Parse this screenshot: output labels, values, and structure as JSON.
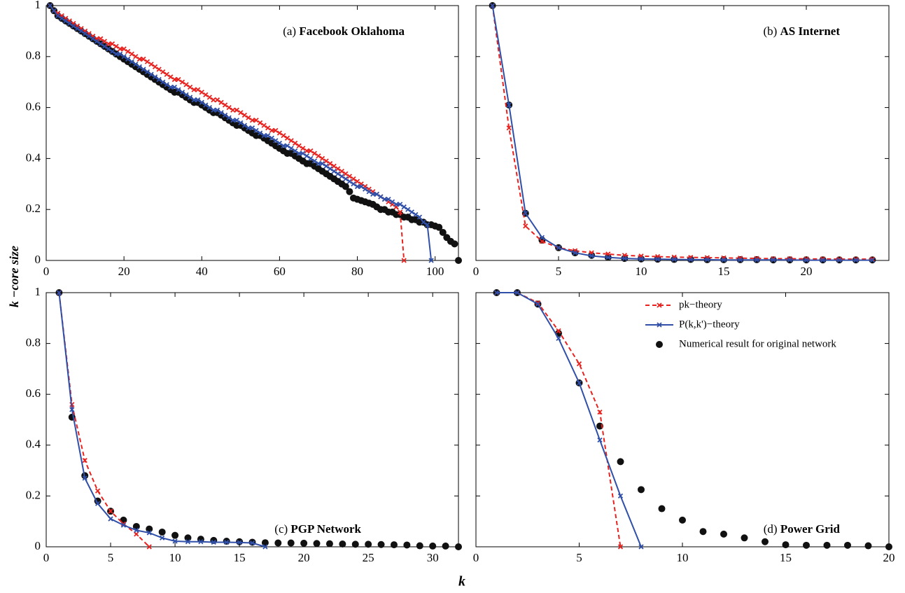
{
  "ylabel": "k −core size",
  "xlabel": "k",
  "chart_data": [
    {
      "type": "line",
      "label": "(a)",
      "title": "Facebook Oklahoma",
      "xlim": [
        0,
        106
      ],
      "xticks": [
        0,
        20,
        40,
        60,
        80,
        100
      ],
      "ylim": [
        0,
        1
      ],
      "yticks": [
        0,
        0.2,
        0.4,
        0.6,
        0.8,
        1
      ],
      "ytick_labels": true,
      "series": [
        {
          "color": "#e8221e",
          "style": "dashed",
          "marker": "x",
          "x": [
            1,
            2,
            3,
            4,
            5,
            6,
            7,
            8,
            9,
            10,
            11,
            12,
            13,
            14,
            15,
            16,
            17,
            18,
            19,
            20,
            21,
            22,
            23,
            24,
            25,
            26,
            27,
            28,
            29,
            30,
            31,
            32,
            33,
            34,
            35,
            36,
            37,
            38,
            39,
            40,
            41,
            42,
            43,
            44,
            45,
            46,
            47,
            48,
            49,
            50,
            51,
            52,
            53,
            54,
            55,
            56,
            57,
            58,
            59,
            60,
            61,
            62,
            63,
            64,
            65,
            66,
            67,
            68,
            69,
            70,
            71,
            72,
            73,
            74,
            75,
            76,
            77,
            78,
            79,
            80,
            81,
            82,
            83,
            84,
            85,
            86,
            87,
            88,
            89,
            90,
            91,
            92
          ],
          "values": [
            1.0,
            0.98,
            0.97,
            0.96,
            0.95,
            0.94,
            0.93,
            0.92,
            0.91,
            0.9,
            0.89,
            0.88,
            0.87,
            0.87,
            0.86,
            0.85,
            0.85,
            0.84,
            0.83,
            0.83,
            0.82,
            0.81,
            0.8,
            0.79,
            0.79,
            0.78,
            0.77,
            0.76,
            0.75,
            0.74,
            0.73,
            0.72,
            0.71,
            0.71,
            0.7,
            0.69,
            0.68,
            0.67,
            0.67,
            0.66,
            0.65,
            0.64,
            0.63,
            0.63,
            0.62,
            0.61,
            0.6,
            0.59,
            0.59,
            0.58,
            0.57,
            0.56,
            0.55,
            0.55,
            0.54,
            0.53,
            0.52,
            0.51,
            0.51,
            0.5,
            0.49,
            0.48,
            0.47,
            0.46,
            0.45,
            0.44,
            0.43,
            0.43,
            0.42,
            0.41,
            0.4,
            0.39,
            0.38,
            0.37,
            0.36,
            0.35,
            0.34,
            0.33,
            0.32,
            0.31,
            0.3,
            0.29,
            0.28,
            0.27,
            0.26,
            0.25,
            0.24,
            0.23,
            0.22,
            0.21,
            0.19,
            0
          ]
        },
        {
          "color": "#2f4fa8",
          "style": "solid",
          "marker": "x",
          "x": [
            1,
            2,
            3,
            4,
            5,
            6,
            7,
            8,
            9,
            10,
            11,
            12,
            13,
            14,
            15,
            16,
            17,
            18,
            19,
            20,
            21,
            22,
            23,
            24,
            25,
            26,
            27,
            28,
            29,
            30,
            31,
            32,
            33,
            34,
            35,
            36,
            37,
            38,
            39,
            40,
            41,
            42,
            43,
            44,
            45,
            46,
            47,
            48,
            49,
            50,
            51,
            52,
            53,
            54,
            55,
            56,
            57,
            58,
            59,
            60,
            61,
            62,
            63,
            64,
            65,
            66,
            67,
            68,
            69,
            70,
            71,
            72,
            73,
            74,
            75,
            76,
            77,
            78,
            79,
            80,
            81,
            82,
            83,
            84,
            85,
            86,
            87,
            88,
            89,
            90,
            91,
            92,
            93,
            94,
            95,
            96,
            97,
            98,
            99
          ],
          "values": [
            1.0,
            0.98,
            0.96,
            0.95,
            0.94,
            0.93,
            0.92,
            0.91,
            0.9,
            0.89,
            0.88,
            0.87,
            0.86,
            0.85,
            0.84,
            0.83,
            0.82,
            0.81,
            0.81,
            0.8,
            0.79,
            0.78,
            0.77,
            0.76,
            0.75,
            0.74,
            0.73,
            0.72,
            0.71,
            0.7,
            0.69,
            0.68,
            0.68,
            0.67,
            0.66,
            0.65,
            0.64,
            0.63,
            0.63,
            0.62,
            0.61,
            0.6,
            0.59,
            0.59,
            0.58,
            0.57,
            0.56,
            0.55,
            0.55,
            0.54,
            0.53,
            0.52,
            0.52,
            0.51,
            0.5,
            0.49,
            0.49,
            0.48,
            0.47,
            0.46,
            0.45,
            0.45,
            0.44,
            0.43,
            0.42,
            0.42,
            0.41,
            0.4,
            0.39,
            0.38,
            0.38,
            0.37,
            0.36,
            0.35,
            0.34,
            0.33,
            0.32,
            0.31,
            0.3,
            0.29,
            0.29,
            0.28,
            0.27,
            0.26,
            0.26,
            0.25,
            0.24,
            0.24,
            0.23,
            0.22,
            0.22,
            0.21,
            0.2,
            0.19,
            0.18,
            0.17,
            0.15,
            0.14,
            0
          ]
        },
        {
          "color": "#111111",
          "style": "none",
          "marker": "dot",
          "x": [
            1,
            2,
            3,
            4,
            5,
            6,
            7,
            8,
            9,
            10,
            11,
            12,
            13,
            14,
            15,
            16,
            17,
            18,
            19,
            20,
            21,
            22,
            23,
            24,
            25,
            26,
            27,
            28,
            29,
            30,
            31,
            32,
            33,
            34,
            35,
            36,
            37,
            38,
            39,
            40,
            41,
            42,
            43,
            44,
            45,
            46,
            47,
            48,
            49,
            50,
            51,
            52,
            53,
            54,
            55,
            56,
            57,
            58,
            59,
            60,
            61,
            62,
            63,
            64,
            65,
            66,
            67,
            68,
            69,
            70,
            71,
            72,
            73,
            74,
            75,
            76,
            77,
            78,
            79,
            80,
            81,
            82,
            83,
            84,
            85,
            86,
            87,
            88,
            89,
            90,
            91,
            92,
            93,
            94,
            95,
            96,
            97,
            98,
            99,
            100,
            101,
            102,
            103,
            104,
            105,
            106
          ],
          "values": [
            1.0,
            0.98,
            0.96,
            0.95,
            0.94,
            0.93,
            0.92,
            0.91,
            0.9,
            0.89,
            0.88,
            0.87,
            0.86,
            0.85,
            0.84,
            0.83,
            0.82,
            0.81,
            0.8,
            0.79,
            0.78,
            0.77,
            0.76,
            0.75,
            0.74,
            0.73,
            0.72,
            0.71,
            0.7,
            0.69,
            0.68,
            0.67,
            0.66,
            0.66,
            0.65,
            0.64,
            0.63,
            0.62,
            0.62,
            0.61,
            0.6,
            0.59,
            0.58,
            0.58,
            0.57,
            0.56,
            0.55,
            0.54,
            0.53,
            0.53,
            0.52,
            0.51,
            0.5,
            0.49,
            0.49,
            0.48,
            0.47,
            0.46,
            0.45,
            0.44,
            0.43,
            0.42,
            0.42,
            0.41,
            0.4,
            0.39,
            0.38,
            0.38,
            0.37,
            0.36,
            0.35,
            0.34,
            0.33,
            0.32,
            0.31,
            0.3,
            0.29,
            0.27,
            0.245,
            0.24,
            0.235,
            0.23,
            0.225,
            0.22,
            0.21,
            0.2,
            0.2,
            0.19,
            0.19,
            0.18,
            0.18,
            0.17,
            0.17,
            0.16,
            0.16,
            0.15,
            0.15,
            0.14,
            0.14,
            0.135,
            0.13,
            0.11,
            0.09,
            0.075,
            0.065,
            0
          ]
        }
      ]
    },
    {
      "type": "line",
      "label": "(b)",
      "title": "AS Internet",
      "xlim": [
        0,
        25
      ],
      "xticks": [
        0,
        5,
        10,
        15,
        20
      ],
      "ylim": [
        0,
        1
      ],
      "yticks": [
        0,
        0.2,
        0.4,
        0.6,
        0.8,
        1
      ],
      "ytick_labels": false,
      "series": [
        {
          "color": "#e8221e",
          "style": "dashed",
          "marker": "x",
          "x": [
            1,
            2,
            3,
            4,
            5,
            6,
            7,
            8,
            9,
            10,
            11,
            12,
            13,
            14,
            15,
            16,
            17,
            18,
            19,
            20,
            21,
            22,
            23,
            24
          ],
          "values": [
            1.0,
            0.52,
            0.135,
            0.075,
            0.05,
            0.038,
            0.03,
            0.025,
            0.02,
            0.017,
            0.015,
            0.013,
            0.012,
            0.011,
            0.01,
            0.009,
            0.008,
            0.007,
            0.007,
            0.006,
            0.006,
            0.005,
            0.005,
            0.005
          ]
        },
        {
          "color": "#2f4fa8",
          "style": "solid",
          "marker": "x",
          "x": [
            1,
            2,
            3,
            4,
            5,
            6,
            7,
            8,
            9,
            10,
            11,
            12,
            13,
            14,
            15,
            16,
            17,
            18,
            19,
            20,
            21,
            22,
            23,
            24
          ],
          "values": [
            1.0,
            0.61,
            0.185,
            0.09,
            0.05,
            0.03,
            0.018,
            0.012,
            0.008,
            0.006,
            0.005,
            0.004,
            0.003,
            0.003,
            0.002,
            0.002,
            0.002,
            0.002,
            0.002,
            0.001,
            0.001,
            0.001,
            0.001,
            0.001
          ]
        },
        {
          "color": "#111111",
          "style": "none",
          "marker": "dot",
          "x": [
            1,
            2,
            3,
            4,
            5,
            6,
            7,
            8,
            9,
            10,
            11,
            12,
            13,
            14,
            15,
            16,
            17,
            18,
            19,
            20,
            21,
            22,
            23,
            24
          ],
          "values": [
            1.0,
            0.61,
            0.185,
            0.08,
            0.05,
            0.03,
            0.02,
            0.012,
            0.008,
            0.006,
            0.005,
            0.004,
            0.004,
            0.003,
            0.003,
            0.003,
            0.003,
            0.002,
            0.002,
            0.002,
            0.002,
            0.002,
            0.002,
            0.002
          ]
        }
      ]
    },
    {
      "type": "line",
      "label": "(c)",
      "title": "PGP Network",
      "xlim": [
        0,
        32
      ],
      "xticks": [
        0,
        5,
        10,
        15,
        20,
        25,
        30
      ],
      "ylim": [
        0,
        1
      ],
      "yticks": [
        0,
        0.2,
        0.4,
        0.6,
        0.8,
        1
      ],
      "ytick_labels": true,
      "series": [
        {
          "color": "#e8221e",
          "style": "dashed",
          "marker": "x",
          "x": [
            1,
            2,
            3,
            4,
            5,
            6,
            7,
            8
          ],
          "values": [
            1.0,
            0.56,
            0.34,
            0.22,
            0.14,
            0.09,
            0.05,
            0
          ]
        },
        {
          "color": "#2f4fa8",
          "style": "solid",
          "marker": "x",
          "x": [
            1,
            2,
            3,
            4,
            5,
            6,
            7,
            8,
            9,
            10,
            11,
            12,
            13,
            14,
            15,
            16,
            17
          ],
          "values": [
            1.0,
            0.54,
            0.27,
            0.17,
            0.11,
            0.085,
            0.065,
            0.055,
            0.035,
            0.022,
            0.02,
            0.02,
            0.018,
            0.018,
            0.017,
            0.015,
            0
          ]
        },
        {
          "color": "#111111",
          "style": "none",
          "marker": "dot",
          "x": [
            1,
            2,
            3,
            4,
            5,
            6,
            7,
            8,
            9,
            10,
            11,
            12,
            13,
            14,
            15,
            16,
            17,
            18,
            19,
            20,
            21,
            22,
            23,
            24,
            25,
            26,
            27,
            28,
            29,
            30,
            31,
            32
          ],
          "values": [
            1.0,
            0.51,
            0.28,
            0.18,
            0.14,
            0.105,
            0.08,
            0.07,
            0.058,
            0.045,
            0.035,
            0.03,
            0.025,
            0.022,
            0.02,
            0.018,
            0.016,
            0.015,
            0.015,
            0.014,
            0.013,
            0.012,
            0.011,
            0.01,
            0.01,
            0.009,
            0.008,
            0.007,
            0.004,
            0.003,
            0.003,
            0
          ]
        }
      ]
    },
    {
      "type": "line",
      "label": "(d)",
      "title": "Power Grid",
      "xlim": [
        0,
        20
      ],
      "xticks": [
        0,
        5,
        10,
        15,
        20
      ],
      "ylim": [
        0,
        1
      ],
      "yticks": [
        0,
        0.2,
        0.4,
        0.6,
        0.8,
        1
      ],
      "ytick_labels": false,
      "legend": "upper right",
      "series": [
        {
          "name": "pk−theory",
          "color": "#e8221e",
          "style": "dashed",
          "marker": "x",
          "x": [
            1,
            2,
            3,
            4,
            5,
            6,
            7
          ],
          "values": [
            1.0,
            1.0,
            0.96,
            0.85,
            0.72,
            0.53,
            0
          ]
        },
        {
          "name": "P(k,k')−theory",
          "color": "#2f4fa8",
          "style": "solid",
          "marker": "x",
          "x": [
            1,
            2,
            3,
            4,
            5,
            6,
            7,
            8
          ],
          "values": [
            1.0,
            1.0,
            0.955,
            0.82,
            0.645,
            0.42,
            0.2,
            0
          ]
        },
        {
          "name": "Numerical result for original network",
          "color": "#111111",
          "style": "none",
          "marker": "dot",
          "x": [
            1,
            2,
            3,
            4,
            5,
            6,
            7,
            8,
            9,
            10,
            11,
            12,
            13,
            14,
            15,
            16,
            17,
            18,
            19,
            20
          ],
          "values": [
            1.0,
            1.0,
            0.955,
            0.84,
            0.645,
            0.475,
            0.335,
            0.225,
            0.15,
            0.105,
            0.06,
            0.05,
            0.035,
            0.02,
            0.008,
            0.006,
            0.006,
            0.006,
            0.004,
            0
          ]
        }
      ]
    }
  ]
}
